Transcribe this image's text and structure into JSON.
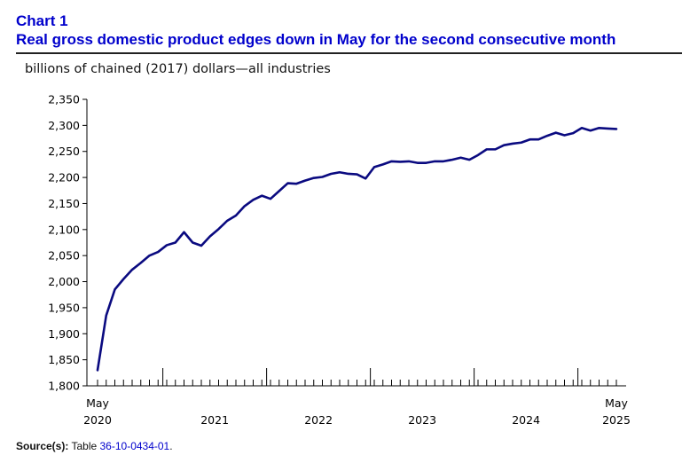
{
  "header": {
    "chart_number": "Chart 1",
    "title": "Real gross domestic product edges down in May for the second consecutive month"
  },
  "units_label": "billions of chained (2017) dollars—all industries",
  "source": {
    "label": "Source(s):",
    "text": "Table",
    "link_text": "36-10-0434-01",
    "suffix": "."
  },
  "colors": {
    "line": "#0a0a80",
    "title": "#0000cc",
    "axis": "#000000"
  },
  "chart_data": {
    "type": "line",
    "title": "Real gross domestic product edges down in May for the second consecutive month",
    "ylabel": "billions of chained (2017) dollars—all industries",
    "xlabel": "",
    "ylim": [
      1800,
      2350
    ],
    "yticks": [
      1800,
      1850,
      1900,
      1950,
      2000,
      2050,
      2100,
      2150,
      2200,
      2250,
      2300,
      2350
    ],
    "ytick_labels": [
      "1,800",
      "1,850",
      "1,900",
      "1,950",
      "2,000",
      "2,050",
      "2,100",
      "2,150",
      "2,200",
      "2,250",
      "2,300",
      "2,350"
    ],
    "x_labels": [
      {
        "month_index": 0,
        "top": "May",
        "bottom": "2020"
      },
      {
        "month_index": 12,
        "top": "",
        "bottom": "2021"
      },
      {
        "month_index": 24,
        "top": "",
        "bottom": "2022"
      },
      {
        "month_index": 36,
        "top": "",
        "bottom": "2023"
      },
      {
        "month_index": 48,
        "top": "",
        "bottom": "2024"
      },
      {
        "month_index": 60,
        "top": "May",
        "bottom": "2025"
      }
    ],
    "year_boundaries": [
      8,
      20,
      32,
      44,
      56
    ],
    "x": [
      "2020-05",
      "2020-06",
      "2020-07",
      "2020-08",
      "2020-09",
      "2020-10",
      "2020-11",
      "2020-12",
      "2021-01",
      "2021-02",
      "2021-03",
      "2021-04",
      "2021-05",
      "2021-06",
      "2021-07",
      "2021-08",
      "2021-09",
      "2021-10",
      "2021-11",
      "2021-12",
      "2022-01",
      "2022-02",
      "2022-03",
      "2022-04",
      "2022-05",
      "2022-06",
      "2022-07",
      "2022-08",
      "2022-09",
      "2022-10",
      "2022-11",
      "2022-12",
      "2023-01",
      "2023-02",
      "2023-03",
      "2023-04",
      "2023-05",
      "2023-06",
      "2023-07",
      "2023-08",
      "2023-09",
      "2023-10",
      "2023-11",
      "2023-12",
      "2024-01",
      "2024-02",
      "2024-03",
      "2024-04",
      "2024-05",
      "2024-06",
      "2024-07",
      "2024-08",
      "2024-09",
      "2024-10",
      "2024-11",
      "2024-12",
      "2025-01",
      "2025-02",
      "2025-03",
      "2025-04",
      "2025-05"
    ],
    "series": [
      {
        "name": "",
        "values": [
          1830,
          1935,
          1985,
          2005,
          2023,
          2036,
          2050,
          2057,
          2070,
          2075,
          2095,
          2075,
          2069,
          2087,
          2101,
          2117,
          2127,
          2145,
          2157,
          2165,
          2159,
          2174,
          2189,
          2188,
          2194,
          2199,
          2201,
          2207,
          2210,
          2207,
          2206,
          2198,
          2220,
          2225,
          2231,
          2230,
          2231,
          2228,
          2228,
          2231,
          2231,
          2234,
          2238,
          2234,
          2243,
          2254,
          2254,
          2262,
          2265,
          2267,
          2273,
          2273,
          2280,
          2286,
          2281,
          2285,
          2295,
          2290,
          2295,
          2294,
          2293
        ]
      }
    ],
    "grid": false,
    "legend": "none"
  }
}
